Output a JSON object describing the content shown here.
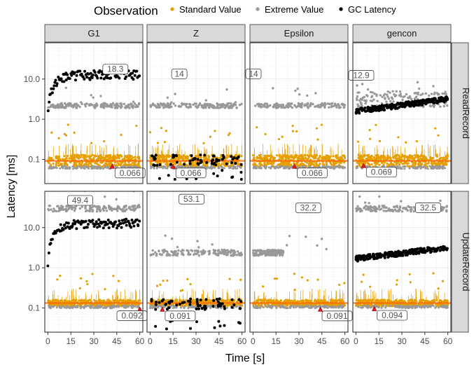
{
  "chart_data": {
    "type": "scatter",
    "title": "",
    "xlabel": "Time [s]",
    "ylabel": "Latency [ms]",
    "y_scale": "log",
    "xlim": [
      -2,
      62
    ],
    "ylim": [
      0.025,
      80
    ],
    "x_ticks": [
      0,
      15,
      30,
      45,
      60
    ],
    "y_ticks": [
      0.1,
      1.0,
      10.0
    ],
    "y_tick_labels": [
      "0.1",
      "1.0",
      "10.0"
    ],
    "grid": true,
    "legend": {
      "title": "Observation",
      "position": "top",
      "entries": [
        {
          "name": "Standard Value",
          "color": "#E69F00"
        },
        {
          "name": "Extreme Value",
          "color": "#999999"
        },
        {
          "name": "GC Latency",
          "color": "#000000"
        }
      ]
    },
    "columns": [
      "G1",
      "Z",
      "Epsilon",
      "gencon"
    ],
    "rows": [
      "ReadRecord",
      "UpdateRecord"
    ],
    "colors": {
      "standard": "#E69F00",
      "extreme": "#999999",
      "gc": "#000000",
      "mean_line": "#FF6600",
      "marker": "#E41A1C",
      "panel_border": "#333333",
      "strip_fill": "#D9D9D9",
      "grid": "#EBEBEB"
    },
    "panels": [
      {
        "row": "ReadRecord",
        "col": "G1",
        "standard_band": [
          0.065,
          0.13
        ],
        "extreme_band": [
          1.9,
          2.5
        ],
        "extreme_span": [
          0,
          60
        ],
        "gc": {
          "shape": "ramp",
          "start": 1.1,
          "plateau": 13,
          "x_range": [
            0,
            60
          ]
        },
        "max": {
          "x": 45,
          "y": 18.3,
          "label": "18.3"
        },
        "min": {
          "x": 42,
          "y": 0.066,
          "label": "0.066"
        }
      },
      {
        "row": "ReadRecord",
        "col": "Z",
        "standard_band": [
          0.065,
          0.13
        ],
        "extreme_band": [
          1.9,
          2.5
        ],
        "extreme_span": [
          0,
          60
        ],
        "gc": {
          "shape": "flat",
          "level": 0.1,
          "x_range": [
            0,
            60
          ]
        },
        "max": {
          "x": 20,
          "y": 14,
          "label": "14"
        },
        "min": {
          "x": 15,
          "y": 0.066,
          "label": "0.066"
        }
      },
      {
        "row": "ReadRecord",
        "col": "Epsilon",
        "standard_band": [
          0.065,
          0.13
        ],
        "extreme_band": [
          1.9,
          2.5
        ],
        "extreme_span": [
          0,
          60
        ],
        "gc": {
          "shape": "none"
        },
        "max": {
          "x": 0,
          "y": 14,
          "label": "14"
        },
        "min": {
          "x": 27,
          "y": 0.066,
          "label": "0.066"
        }
      },
      {
        "row": "ReadRecord",
        "col": "gencon",
        "standard_band": [
          0.065,
          0.13
        ],
        "extreme_band": [
          2.0,
          5.0
        ],
        "extreme_span": [
          0,
          60
        ],
        "gc": {
          "shape": "linear",
          "start": 1.6,
          "end": 3.2,
          "x_range": [
            0,
            60
          ]
        },
        "max": {
          "x": 3,
          "y": 12.9,
          "label": "12.9"
        },
        "min": {
          "x": 5,
          "y": 0.069,
          "label": "0.069"
        }
      },
      {
        "row": "UpdateRecord",
        "col": "G1",
        "standard_band": [
          0.11,
          0.16
        ],
        "extreme_band": [
          25,
          35
        ],
        "extreme_span": [
          0,
          60
        ],
        "gc": {
          "shape": "ramp",
          "start": 1.0,
          "plateau": 13,
          "x_range": [
            0,
            60
          ]
        },
        "max": {
          "x": 22,
          "y": 49.4,
          "label": "49.4"
        },
        "min": {
          "x": 60,
          "y": 0.092,
          "label": "0.092"
        }
      },
      {
        "row": "UpdateRecord",
        "col": "Z",
        "standard_band": [
          0.11,
          0.16
        ],
        "extreme_band": [
          2.0,
          2.8
        ],
        "extreme_span": [
          0,
          60
        ],
        "gc": {
          "shape": "flat",
          "level": 0.13,
          "x_range": [
            0,
            60
          ]
        },
        "max": {
          "x": 28,
          "y": 53.1,
          "label": "53.1"
        },
        "min": {
          "x": 8,
          "y": 0.091,
          "label": "0.091"
        }
      },
      {
        "row": "UpdateRecord",
        "col": "Epsilon",
        "standard_band": [
          0.11,
          0.16
        ],
        "extreme_band": [
          2.0,
          2.8
        ],
        "extreme_span": [
          0,
          20
        ],
        "gc": {
          "shape": "none"
        },
        "max": {
          "x": 37,
          "y": 32.2,
          "label": "32.2"
        },
        "min": {
          "x": 44,
          "y": 0.091,
          "label": "0.091"
        }
      },
      {
        "row": "UpdateRecord",
        "col": "gencon",
        "standard_band": [
          0.11,
          0.16
        ],
        "extreme_band": [
          25,
          35
        ],
        "extreme_span": [
          0,
          60
        ],
        "gc": {
          "shape": "linear",
          "start": 1.7,
          "end": 3.2,
          "x_range": [
            0,
            60
          ]
        },
        "max": {
          "x": 48,
          "y": 32.5,
          "label": "32.5"
        },
        "min": {
          "x": 12,
          "y": 0.094,
          "label": "0.094"
        }
      }
    ]
  }
}
